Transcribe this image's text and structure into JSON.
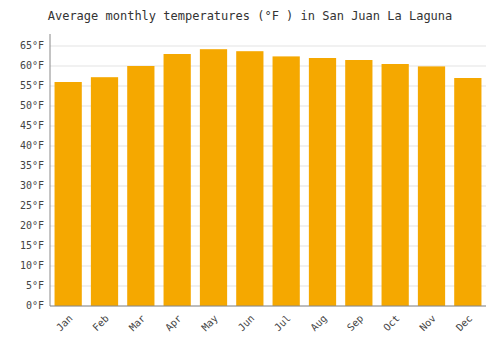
{
  "chart_data": {
    "type": "bar",
    "title": "Average monthly temperatures (°F ) in San Juan La Laguna",
    "categories": [
      "Jan",
      "Feb",
      "Mar",
      "Apr",
      "May",
      "Jun",
      "Jul",
      "Aug",
      "Sep",
      "Oct",
      "Nov",
      "Dec"
    ],
    "values": [
      56.0,
      57.2,
      60.0,
      63.0,
      64.2,
      63.7,
      62.4,
      62.0,
      61.5,
      60.5,
      59.9,
      57.0
    ],
    "color": "#F5A800",
    "ylim": [
      0,
      68
    ],
    "yticks": [
      {
        "value": 0,
        "label": "0°F"
      },
      {
        "value": 5,
        "label": "5°F"
      },
      {
        "value": 10,
        "label": "10°F"
      },
      {
        "value": 15,
        "label": "15°F"
      },
      {
        "value": 20,
        "label": "20°F"
      },
      {
        "value": 25,
        "label": "25°F"
      },
      {
        "value": 30,
        "label": "30°F"
      },
      {
        "value": 35,
        "label": "35°F"
      },
      {
        "value": 40,
        "label": "40°F"
      },
      {
        "value": 45,
        "label": "45°F"
      },
      {
        "value": 50,
        "label": "50°F"
      },
      {
        "value": 55,
        "label": "55°F"
      },
      {
        "value": 60,
        "label": "60°F"
      },
      {
        "value": 65,
        "label": "65°F"
      }
    ],
    "grid": true
  }
}
